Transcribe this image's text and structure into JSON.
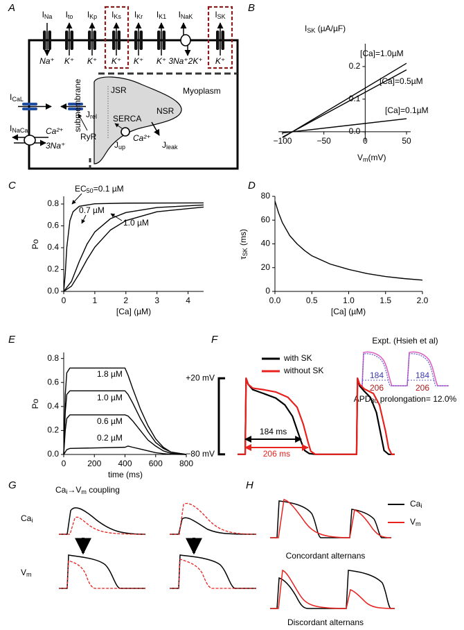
{
  "panel_labels": [
    "A",
    "B",
    "C",
    "D",
    "E",
    "F",
    "G",
    "H"
  ],
  "cell_diagram": {
    "channels": [
      {
        "current": [
          "I",
          "Na"
        ],
        "ion": "Na⁺"
      },
      {
        "current": [
          "I",
          "to"
        ],
        "ion": "K⁺"
      },
      {
        "current": [
          "I",
          "Kp"
        ],
        "ion": "K⁺"
      },
      {
        "current": [
          "I",
          "Ks"
        ],
        "ion": "K⁺"
      },
      {
        "current": [
          "I",
          "Kr"
        ],
        "ion": "K⁺"
      },
      {
        "current": [
          "I",
          "K1"
        ],
        "ion": "K⁺"
      },
      {
        "current": [
          "I",
          "NaK"
        ],
        "ion": "3Na⁺2K⁺"
      },
      {
        "current": [
          "I",
          "SK"
        ],
        "ion": "K⁺"
      }
    ],
    "calcium_current": [
      "I",
      "CaL"
    ],
    "exchanger_current": [
      "I",
      "NaCa"
    ],
    "exchanger_ions": [
      "Ca²⁺",
      "3Na⁺"
    ],
    "submembrane": "submembrane",
    "jsr": "JSR",
    "nsr": "NSR",
    "myoplasm": "Myoplasm",
    "release": [
      "J",
      "rel"
    ],
    "ryr": "RyR",
    "serca": "SERCA",
    "uptake": [
      "J",
      "up"
    ],
    "uptake_ion": "Ca²⁺",
    "leak": [
      "J",
      "leak"
    ]
  },
  "chart_data": [
    {
      "type": "line",
      "title_parts": [
        "I",
        "SK",
        " (µA/µF)"
      ],
      "x_label_parts": [
        "V",
        "m",
        "(mV)"
      ],
      "xlim": [
        -105,
        55
      ],
      "xticks": [
        {
          "value": -100,
          "label": "−100"
        },
        {
          "value": -50,
          "label": "−50"
        },
        0,
        50
      ],
      "ylim": [
        -0.03,
        0.27
      ],
      "yticks": [
        {
          "value": 0,
          "label": "0.0"
        },
        0.1,
        0.2
      ],
      "series": [
        {
          "name": "[Ca]=1.0µM",
          "color": "#000000",
          "x": [
            -100,
            50
          ],
          "values": [
            -0.018,
            0.21
          ]
        },
        {
          "name": "[Ca]=0.5µM",
          "color": "#000000",
          "x": [
            -100,
            50
          ],
          "values": [
            -0.0165,
            0.19
          ]
        },
        {
          "name": "[Ca]=0.1µM",
          "color": "#000000",
          "x": [
            -100,
            50
          ],
          "values": [
            -0.0035,
            0.04
          ]
        }
      ]
    },
    {
      "type": "line",
      "x_label": "[Ca] (µM)",
      "y_label": "Po",
      "xlim": [
        0,
        4.5
      ],
      "xticks": [
        0,
        1,
        2,
        3,
        4
      ],
      "ylim": [
        0,
        0.87
      ],
      "yticks": [
        {
          "value": 0,
          "label": "0.0"
        },
        0.2,
        0.4,
        0.6,
        0.8
      ],
      "series": [
        {
          "name_parts": [
            "EC",
            "50",
            "=0.1 µM"
          ],
          "color": "#000000",
          "x": [
            0,
            0.05,
            0.1,
            0.2,
            0.3,
            0.5,
            1,
            2,
            4.5
          ],
          "values": [
            0,
            0.162,
            0.405,
            0.648,
            0.729,
            0.779,
            0.802,
            0.808,
            0.81
          ]
        },
        {
          "name": "0.7 µM",
          "color": "#000000",
          "x": [
            0,
            0.25,
            0.5,
            0.75,
            1,
            1.5,
            2,
            3,
            4.5
          ],
          "values": [
            0,
            0.092,
            0.274,
            0.433,
            0.544,
            0.665,
            0.722,
            0.768,
            0.791
          ]
        },
        {
          "name": "1.0 µM",
          "color": "#000000",
          "x": [
            0,
            0.25,
            0.5,
            0.75,
            1,
            1.5,
            2,
            3,
            4.5
          ],
          "values": [
            0,
            0.048,
            0.162,
            0.292,
            0.405,
            0.561,
            0.648,
            0.729,
            0.772
          ]
        }
      ]
    },
    {
      "type": "line",
      "x_label": "[Ca] (µM)",
      "y_label_parts": [
        "τ",
        "SK",
        " (ms)"
      ],
      "xlim": [
        0,
        2
      ],
      "xticks": [
        {
          "value": 0,
          "label": "0.0"
        },
        0.5,
        {
          "value": 1,
          "label": "1.0"
        },
        1.5,
        {
          "value": 2,
          "label": "2.0"
        }
      ],
      "ylim": [
        0,
        80
      ],
      "yticks": [
        0,
        20,
        40,
        60,
        80
      ],
      "series": [
        {
          "color": "#000000",
          "x": [
            0,
            0.05,
            0.1,
            0.2,
            0.3,
            0.4,
            0.5,
            0.75,
            1,
            1.25,
            1.5,
            1.75,
            2
          ],
          "values": [
            76,
            66,
            58,
            47,
            40,
            34.5,
            30,
            23,
            18.5,
            15,
            12.5,
            10.8,
            9.5
          ]
        }
      ]
    },
    {
      "type": "line",
      "x_label": "time (ms)",
      "y_label": "Po",
      "xlim": [
        0,
        800
      ],
      "xticks": [
        0,
        200,
        400,
        600,
        800
      ],
      "ylim": [
        0,
        0.85
      ],
      "yticks": [
        {
          "value": 0,
          "label": "0.0"
        },
        0.2,
        0.4,
        0.6,
        0.8
      ],
      "x": [
        0,
        10,
        20,
        40,
        400,
        420,
        450,
        500,
        550,
        600,
        650,
        700,
        800
      ],
      "series": [
        {
          "name": "1.8 µM",
          "color": "#000000",
          "values": [
            0,
            0.5,
            0.68,
            0.72,
            0.72,
            0.66,
            0.55,
            0.38,
            0.24,
            0.13,
            0.06,
            0.02,
            0
          ]
        },
        {
          "name": "1.0 µM",
          "color": "#000000",
          "values": [
            0,
            0.35,
            0.5,
            0.53,
            0.53,
            0.5,
            0.43,
            0.3,
            0.19,
            0.1,
            0.05,
            0.02,
            0
          ]
        },
        {
          "name": "0.6 µM",
          "color": "#000000",
          "values": [
            0,
            0.2,
            0.3,
            0.33,
            0.33,
            0.32,
            0.28,
            0.2,
            0.12,
            0.07,
            0.03,
            0.01,
            0
          ]
        },
        {
          "name": "0.2 µM",
          "color": "#000000",
          "values": [
            0,
            0.02,
            0.04,
            0.05,
            0.06,
            0.07,
            0.06,
            0.045,
            0.03,
            0.015,
            0.007,
            0.002,
            0
          ]
        }
      ]
    },
    {
      "type": "line",
      "xlim": [
        -25,
        490
      ],
      "ylim": [
        -82,
        22
      ],
      "yticks": [
        {
          "value": 20,
          "label": "+20 mV"
        },
        {
          "value": -80,
          "label": "−80 mV"
        }
      ],
      "series": [
        {
          "name": "with SK",
          "color": "#000000",
          "x": [
            -25,
            0,
            3,
            10,
            25,
            60,
            100,
            130,
            155,
            172,
            184,
            195,
            210,
            230,
            365,
            368,
            375,
            390,
            410,
            430,
            445,
            455,
            470,
            490
          ],
          "values": [
            -80,
            -80,
            20,
            12,
            5,
            0,
            -6,
            -15,
            -30,
            -50,
            -64,
            -75,
            -79,
            -80,
            -80,
            20,
            10,
            3,
            -5,
            -25,
            -55,
            -75,
            -80,
            -80
          ]
        },
        {
          "name": "without SK",
          "color": "#e8211d",
          "x": [
            -25,
            0,
            3,
            10,
            25,
            60,
            100,
            140,
            170,
            190,
            206,
            215,
            230,
            365,
            368,
            375,
            390,
            420,
            440,
            460,
            470,
            480,
            490
          ],
          "values": [
            -80,
            -80,
            20,
            12,
            7,
            5,
            2,
            -5,
            -18,
            -40,
            -64,
            -76,
            -80,
            -80,
            20,
            12,
            6,
            0,
            -15,
            -50,
            -72,
            -80,
            -80
          ]
        }
      ],
      "annotations": [
        {
          "value": 184,
          "label": "184 ms",
          "color": "#000000"
        },
        {
          "value": 206,
          "label": "206 ms",
          "color": "#e8211d"
        }
      ],
      "inset": {
        "title": "Expt. (Hsieh et al)",
        "apd_with": 184,
        "apd_without": 206,
        "note_parts": [
          "APD",
          "80",
          " prolongation= 12.0%"
        ]
      }
    }
  ],
  "coupling": {
    "title_parts": [
      "Ca",
      "i",
      "→V",
      "m",
      " coupling"
    ],
    "ca_label": [
      "Ca",
      "i"
    ],
    "vm_label": [
      "V",
      "m"
    ]
  },
  "alternans": {
    "legend": [
      {
        "name_parts": [
          "Ca",
          "i"
        ],
        "color": "#000000"
      },
      {
        "name_parts": [
          "V",
          "m"
        ],
        "color": "#e8211d"
      }
    ],
    "concordant": "Concordant alternans",
    "discordant": "Discordant alternans"
  }
}
